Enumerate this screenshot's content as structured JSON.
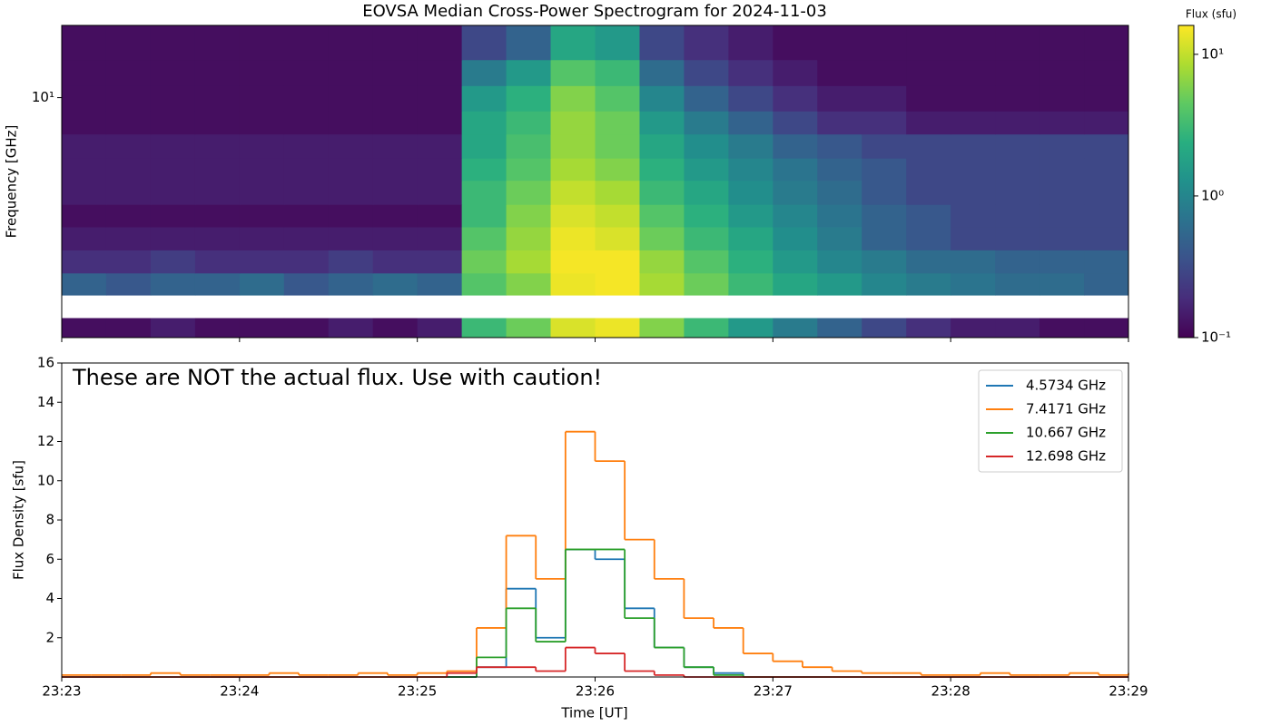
{
  "chart_data": [
    {
      "type": "heatmap",
      "title": "EOVSA Median Cross-Power Spectrogram for 2024-11-03",
      "ylabel": "Frequency [GHz]",
      "colorbar_label": "Flux (sfu)",
      "colormap": "viridis",
      "ylog": true,
      "x": [
        "23:23:00",
        "23:23:15",
        "23:23:30",
        "23:23:45",
        "23:24:00",
        "23:24:15",
        "23:24:30",
        "23:24:45",
        "23:25:00",
        "23:25:15",
        "23:25:30",
        "23:25:45",
        "23:26:00",
        "23:26:15",
        "23:26:30",
        "23:26:45",
        "23:27:00",
        "23:27:15",
        "23:27:30",
        "23:27:45",
        "23:28:00",
        "23:28:15",
        "23:28:30",
        "23:28:45",
        "23:29:00"
      ],
      "y": [
        1.5,
        1.75,
        2.1,
        2.5,
        3,
        3.6,
        4.3,
        5.2,
        6.2,
        7.5,
        9,
        11,
        13.5,
        17.7
      ],
      "values": [
        [
          0.12,
          0.12,
          0.15,
          0.12,
          0.12,
          0.12,
          0.15,
          0.12,
          0.15,
          3,
          5,
          12,
          14,
          6,
          3,
          1.5,
          0.8,
          0.5,
          0.3,
          0.2,
          0.15,
          0.15,
          0.12,
          0.12
        ],
        [
          null,
          null,
          null,
          null,
          null,
          null,
          null,
          null,
          null,
          null,
          null,
          null,
          null,
          null,
          null,
          null,
          null,
          null,
          null,
          null,
          null,
          null,
          null,
          null
        ],
        [
          0.5,
          0.4,
          0.5,
          0.5,
          0.6,
          0.4,
          0.5,
          0.6,
          0.5,
          4,
          6,
          14,
          15,
          8,
          5,
          3,
          2,
          1.5,
          1,
          0.8,
          0.7,
          0.6,
          0.6,
          0.5
        ],
        [
          0.2,
          0.2,
          0.25,
          0.2,
          0.2,
          0.2,
          0.25,
          0.2,
          0.2,
          5,
          8,
          15,
          15,
          7,
          4,
          2.5,
          1.5,
          1,
          0.8,
          0.6,
          0.6,
          0.5,
          0.5,
          0.5
        ],
        [
          0.15,
          0.15,
          0.15,
          0.15,
          0.15,
          0.15,
          0.15,
          0.15,
          0.15,
          4,
          7,
          14,
          12,
          5,
          3,
          2,
          1.2,
          0.8,
          0.5,
          0.4,
          0.3,
          0.3,
          0.3,
          0.3
        ],
        [
          0.12,
          0.12,
          0.12,
          0.12,
          0.12,
          0.12,
          0.12,
          0.12,
          0.12,
          3,
          6,
          12,
          10,
          4,
          2.5,
          1.5,
          1,
          0.7,
          0.5,
          0.4,
          0.3,
          0.3,
          0.3,
          0.3
        ],
        [
          0.15,
          0.15,
          0.15,
          0.15,
          0.15,
          0.15,
          0.15,
          0.15,
          0.15,
          3,
          5,
          10,
          8,
          3,
          2,
          1.2,
          0.8,
          0.6,
          0.4,
          0.3,
          0.3,
          0.3,
          0.3,
          0.3
        ],
        [
          0.15,
          0.15,
          0.15,
          0.15,
          0.15,
          0.15,
          0.15,
          0.15,
          0.15,
          2.5,
          4,
          8,
          6,
          2.5,
          1.5,
          1,
          0.7,
          0.5,
          0.4,
          0.3,
          0.3,
          0.3,
          0.3,
          0.3
        ],
        [
          0.15,
          0.15,
          0.15,
          0.15,
          0.15,
          0.15,
          0.15,
          0.15,
          0.15,
          2,
          3.5,
          7,
          5,
          2,
          1.2,
          0.8,
          0.5,
          0.4,
          0.3,
          0.3,
          0.3,
          0.3,
          0.3,
          0.3
        ],
        [
          0.12,
          0.12,
          0.12,
          0.12,
          0.12,
          0.12,
          0.12,
          0.12,
          0.12,
          2,
          3,
          7,
          5,
          1.5,
          0.8,
          0.5,
          0.3,
          0.2,
          0.2,
          0.15,
          0.15,
          0.15,
          0.15,
          0.15
        ],
        [
          0.12,
          0.12,
          0.12,
          0.12,
          0.12,
          0.12,
          0.12,
          0.12,
          0.12,
          1.5,
          2.5,
          6,
          4,
          1,
          0.5,
          0.3,
          0.2,
          0.15,
          0.15,
          0.12,
          0.12,
          0.12,
          0.12,
          0.12
        ],
        [
          0.12,
          0.12,
          0.12,
          0.12,
          0.12,
          0.12,
          0.12,
          0.12,
          0.12,
          0.8,
          1.5,
          4,
          3,
          0.6,
          0.3,
          0.2,
          0.15,
          0.12,
          0.12,
          0.12,
          0.12,
          0.12,
          0.12,
          0.12
        ],
        [
          0.12,
          0.12,
          0.12,
          0.12,
          0.12,
          0.12,
          0.12,
          0.12,
          0.12,
          0.3,
          0.5,
          2,
          1.5,
          0.3,
          0.2,
          0.15,
          0.12,
          0.12,
          0.12,
          0.12,
          0.12,
          0.12,
          0.12,
          0.12
        ]
      ],
      "xlim": [
        "23:23",
        "23:29"
      ],
      "xticks": [
        "23:23",
        "23:24",
        "23:25",
        "23:26",
        "23:27",
        "23:28",
        "23:29"
      ],
      "ylim": [
        1.5,
        17.7
      ],
      "yticks": [
        {
          "value": 10,
          "label": "10¹"
        }
      ],
      "clim": [
        0.1,
        16
      ],
      "cticks": [
        {
          "value": 0.1,
          "label": "10⁻¹"
        },
        {
          "value": 1,
          "label": "10⁰"
        },
        {
          "value": 10,
          "label": "10¹"
        }
      ]
    },
    {
      "type": "step",
      "annotation": "These are NOT the actual flux. Use with caution!",
      "xlabel": "Time [UT]",
      "ylabel": "Flux Density [sfu]",
      "legend": "upper right",
      "x": [
        "23:23:00",
        "23:23:10",
        "23:23:20",
        "23:23:30",
        "23:23:40",
        "23:23:50",
        "23:24:00",
        "23:24:10",
        "23:24:20",
        "23:24:30",
        "23:24:40",
        "23:24:50",
        "23:25:00",
        "23:25:10",
        "23:25:20",
        "23:25:30",
        "23:25:40",
        "23:25:50",
        "23:26:00",
        "23:26:10",
        "23:26:20",
        "23:26:30",
        "23:26:40",
        "23:26:50",
        "23:27:00",
        "23:27:10",
        "23:27:20",
        "23:27:30",
        "23:27:40",
        "23:27:50",
        "23:28:00",
        "23:28:10",
        "23:28:20",
        "23:28:30",
        "23:28:40",
        "23:28:50",
        "23:29:00"
      ],
      "series": [
        {
          "name": "4.5734 GHz",
          "color": "#1f77b4",
          "values": [
            0,
            0,
            0,
            0,
            0,
            0,
            0,
            0,
            0,
            0,
            0,
            0,
            0,
            0,
            0.5,
            4.5,
            2,
            6.5,
            6,
            3.5,
            1.5,
            0.5,
            0.2,
            0,
            0,
            0,
            0,
            0,
            0,
            0,
            0,
            0,
            0,
            0,
            0,
            0,
            0
          ]
        },
        {
          "name": "7.4171 GHz",
          "color": "#ff7f0e",
          "values": [
            0.1,
            0.1,
            0.1,
            0.2,
            0.1,
            0.1,
            0.1,
            0.2,
            0.1,
            0.1,
            0.2,
            0.1,
            0.2,
            0.3,
            2.5,
            7.2,
            5,
            12.5,
            11,
            7,
            5,
            3,
            2.5,
            1.2,
            0.8,
            0.5,
            0.3,
            0.2,
            0.2,
            0.1,
            0.1,
            0.2,
            0.1,
            0.1,
            0.2,
            0.1,
            0.2
          ]
        },
        {
          "name": "10.667 GHz",
          "color": "#2ca02c",
          "values": [
            0,
            0,
            0,
            0,
            0,
            0,
            0,
            0,
            0,
            0,
            0,
            0,
            0,
            0,
            1,
            3.5,
            1.8,
            6.5,
            6.5,
            3,
            1.5,
            0.5,
            0.1,
            0,
            0,
            0,
            0,
            0,
            0,
            0,
            0,
            0,
            0,
            0,
            0,
            0,
            0
          ]
        },
        {
          "name": "12.698 GHz",
          "color": "#d62728",
          "values": [
            0,
            0,
            0,
            0,
            0,
            0,
            0,
            0,
            0,
            0,
            0,
            0,
            0,
            0.2,
            0.5,
            0.5,
            0.3,
            1.5,
            1.2,
            0.3,
            0.1,
            0,
            0,
            0,
            0,
            0,
            0,
            0,
            0,
            0,
            0,
            0,
            0,
            0,
            0,
            0,
            0
          ]
        }
      ],
      "xlim": [
        "23:23",
        "23:29"
      ],
      "xticks": [
        "23:23",
        "23:24",
        "23:25",
        "23:26",
        "23:27",
        "23:28",
        "23:29"
      ],
      "ylim": [
        0,
        16
      ],
      "yticks": [
        2,
        4,
        6,
        8,
        10,
        12,
        14,
        16
      ]
    }
  ]
}
